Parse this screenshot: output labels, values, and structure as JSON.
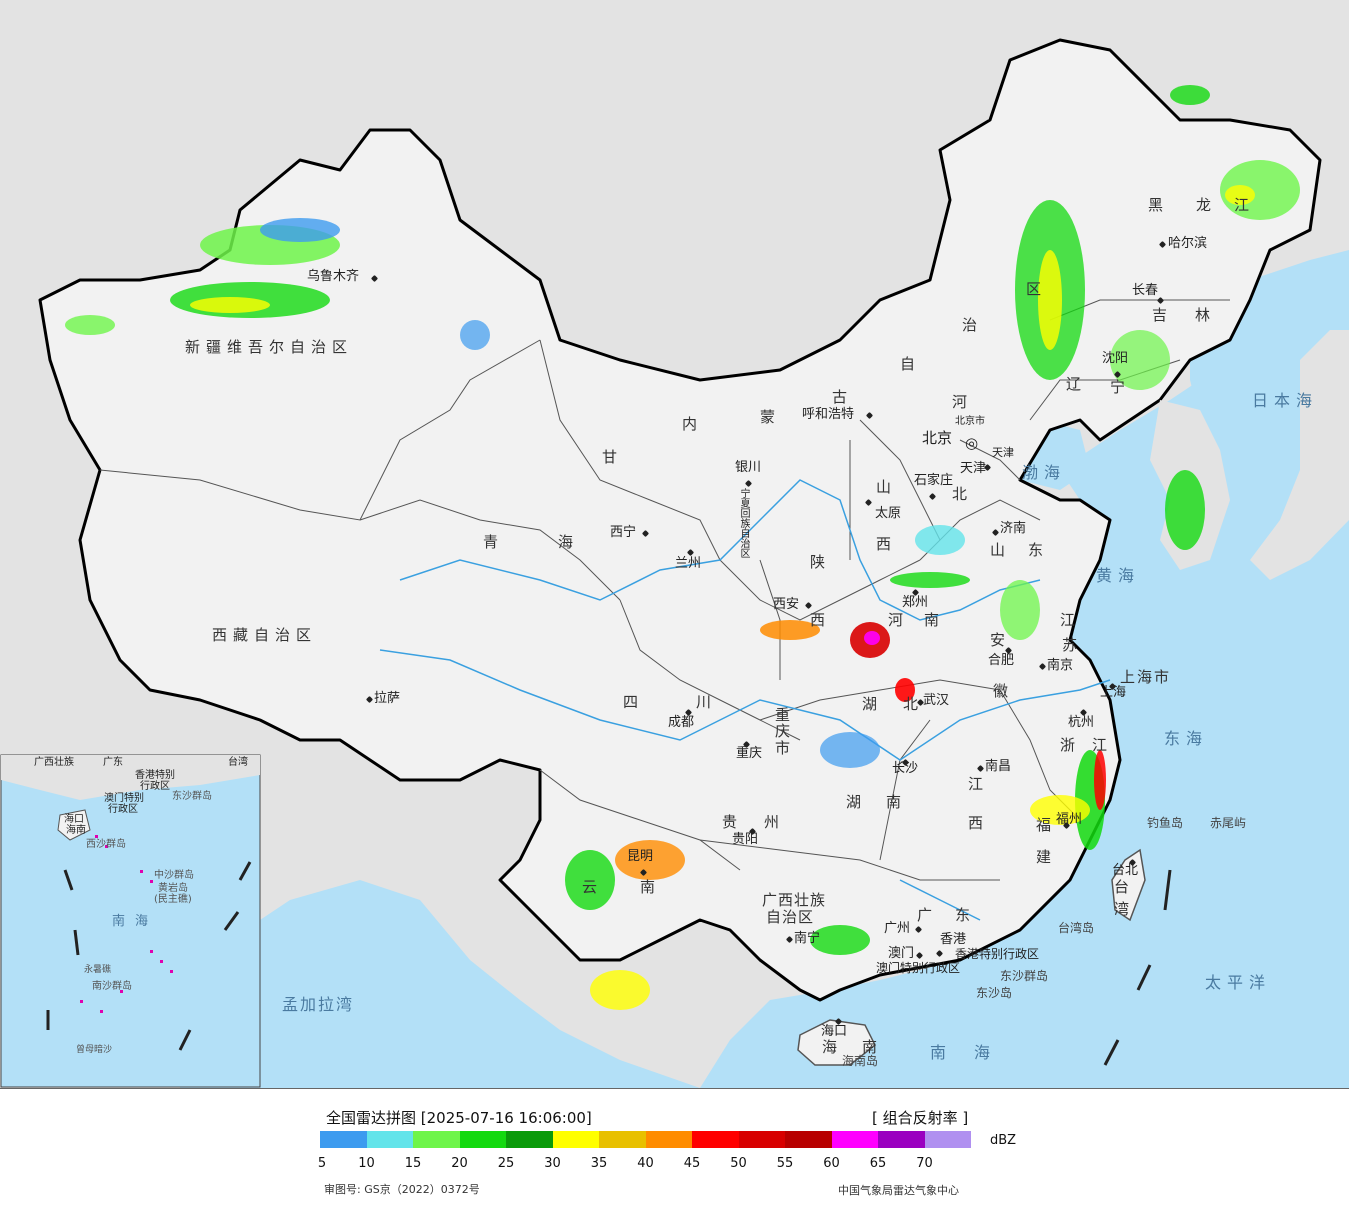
{
  "map": {
    "provinces": {
      "xinjiang": "新疆维吾尔自治区",
      "xizang": "西藏自治区",
      "qinghai_1": "青",
      "qinghai_2": "海",
      "gansu": "甘",
      "sichuan_1": "四",
      "sichuan_2": "川",
      "yunnan_1": "云",
      "yunnan_2": "南",
      "guizhou_1": "贵",
      "guizhou_2": "州",
      "guangxi_1": "广西壮族",
      "guangxi_2": "自治区",
      "guangdong_1": "广",
      "guangdong_2": "东",
      "hainan_1": "海",
      "hainan_2": "南",
      "hunan_1": "湖",
      "hunan_2": "南",
      "hubei_1": "湖",
      "hubei_2": "北",
      "jiangxi_1": "江",
      "jiangxi_2": "西",
      "fujian_1": "福",
      "fujian_2": "建",
      "zhejiang_1": "浙",
      "zhejiang_2": "江",
      "shanghai": "上海市",
      "jiangsu_1": "江",
      "jiangsu_2": "苏",
      "anhui_1": "安",
      "anhui_2": "徽",
      "henan_1": "河",
      "henan_2": "南",
      "shandong_1": "山",
      "shandong_2": "东",
      "shanxi_1": "山",
      "shanxi_2": "西",
      "shaanxi_1": "陕",
      "shaanxi_2": "西",
      "hebei_1": "河",
      "hebei_2": "北",
      "neimenggu_1": "内",
      "neimenggu_2": "蒙",
      "neimenggu_3": "古",
      "neimenggu_4": "自",
      "neimenggu_5": "治",
      "neimenggu_6": "区",
      "heilongjiang_1": "黑",
      "heilongjiang_2": "龙",
      "heilongjiang_3": "江",
      "jilin_1": "吉",
      "jilin_2": "林",
      "liaoning_1": "辽",
      "liaoning_2": "宁",
      "chongqing_1": "重",
      "chongqing_2": "庆",
      "chongqing_3": "市",
      "ningxia": "宁夏回族自治区",
      "tianjin": "天津",
      "beijing_small": "北京市",
      "hk": "香港特别行政区",
      "macau": "澳门特别行政区",
      "taiwan_1": "台",
      "taiwan_2": "湾"
    },
    "cities": {
      "urumqi": "乌鲁木齐",
      "lhasa": "拉萨",
      "xining": "西宁",
      "lanzhou": "兰州",
      "yinchuan": "银川",
      "hohhot": "呼和浩特",
      "beijing": "北京",
      "tianjin": "天津",
      "shijiazhuang": "石家庄",
      "taiyuan": "太原",
      "jinan": "济南",
      "zhengzhou": "郑州",
      "xian": "西安",
      "chengdu": "成都",
      "chongqing": "重庆",
      "wuhan": "武汉",
      "hefei": "合肥",
      "nanjing": "南京",
      "shanghai": "上海",
      "hangzhou": "杭州",
      "nanchang": "南昌",
      "changsha": "长沙",
      "guiyang": "贵阳",
      "kunming": "昆明",
      "nanning": "南宁",
      "guangzhou": "广州",
      "hongkong": "香港",
      "macau": "澳门",
      "haikou": "海口",
      "fuzhou": "福州",
      "taipei": "台北",
      "shenyang": "沈阳",
      "changchun": "长春",
      "harbin": "哈尔滨"
    },
    "islands": {
      "diaoyu": "钓鱼岛",
      "chiwei": "赤尾屿",
      "taiwan_island": "台湾岛",
      "dongsha_islands": "东沙群岛",
      "dongsha_island": "东沙岛",
      "hainan_island": "海南岛"
    },
    "seas": {
      "japan_sea": "日本海",
      "bohai": "渤海",
      "yellow_sea": "黄海",
      "east_sea": "东海",
      "pacific": "太平洋",
      "south_sea": "南海",
      "bengal": "孟加拉湾"
    },
    "inset": {
      "south_sea": "南海",
      "xisha": "西沙群岛",
      "zhongsha": "中沙群岛",
      "huangyan": "黄岩岛",
      "minzhu": "(民主礁)",
      "nansha": "南沙群岛",
      "yongshu": "永暑礁",
      "zengmu": "曾母暗沙",
      "guangxi": "广西壮族",
      "guangdong": "广东",
      "taiwan": "台湾",
      "xianggang": "香港特别",
      "xingzheng": "行政区",
      "aomen": "澳门特别",
      "aomen2": "行政区",
      "dongsha": "东沙群岛",
      "haikou": "海口",
      "hainan": "海南"
    }
  },
  "legend": {
    "title": "全国雷达拼图 [2025-07-16 16:06:00]",
    "product": "[ 组合反射率 ]",
    "unit": "dBZ",
    "ticks": [
      "5",
      "10",
      "15",
      "20",
      "25",
      "30",
      "35",
      "40",
      "45",
      "50",
      "55",
      "60",
      "65",
      "70"
    ],
    "colors": [
      "#3d9bef",
      "#63e4ea",
      "#6ef54a",
      "#13d90f",
      "#0a9a0a",
      "#ffff00",
      "#e8c000",
      "#ff8c00",
      "#ff0000",
      "#d80000",
      "#b80000",
      "#ff00ff",
      "#9a00c0",
      "#b090f0"
    ],
    "approval": "审图号: GS京（2022）0372号",
    "organization": "中国气象局雷达气象中心"
  },
  "colors": {
    "sea": "#b3e0f7",
    "land_china": "#f2f2f2",
    "land_foreign": "#e0e0e0",
    "border": "#000000"
  }
}
